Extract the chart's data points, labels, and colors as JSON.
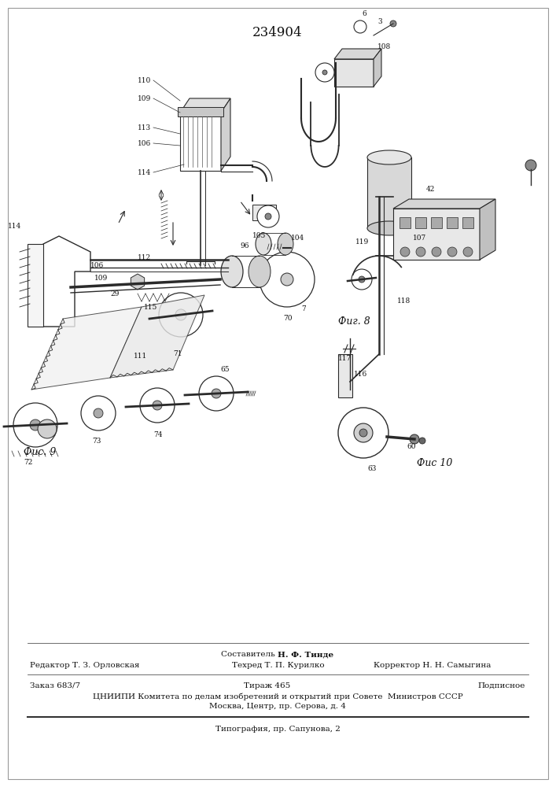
{
  "title_number": "234904",
  "fig8_label": "Фиг. 8",
  "fig9_label": "Фис. 9",
  "fig10_label": "Фис 10",
  "footer_line1": "Составитель Н. Ф. Тинде",
  "footer_line2_left": "Редактор Т. З. Орловская",
  "footer_line2_center": "Техред Т. П. Курилко",
  "footer_line2_right": "Корректор Н. Н. Самыгина",
  "footer_line3_left": "Заказ 683/7",
  "footer_line3_center": "Тираж 465",
  "footer_line3_right": "Подписное",
  "footer_line4": "ЦНИИПИ Комитета по делам изобретений и открытий при Совете  Министров СССР",
  "footer_line5": "Москва, Центр, пр. Серова, д. 4",
  "footer_line6": "Типография, пр. Сапунова, 2"
}
